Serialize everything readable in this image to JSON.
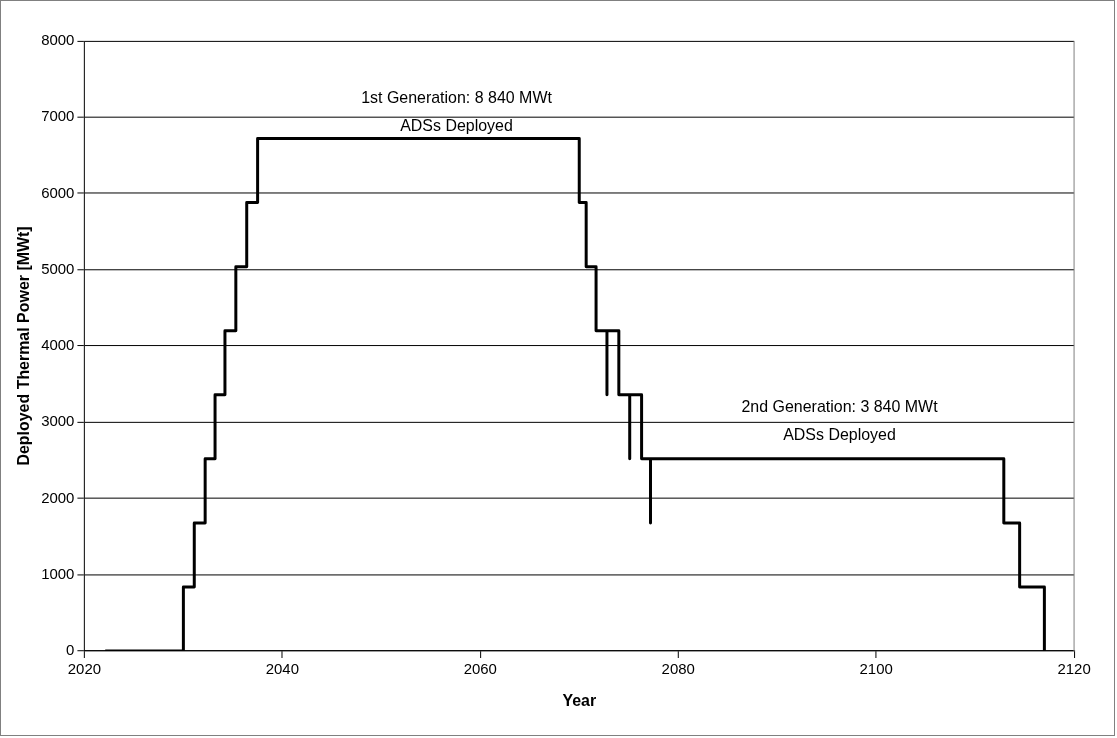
{
  "chart_data": {
    "type": "line",
    "xlabel": "Year",
    "ylabel": "Deployed Thermal Power [MWt]",
    "xlim": [
      2020,
      2120
    ],
    "xticks": [
      2020,
      2040,
      2060,
      2080,
      2100,
      2120
    ],
    "ylim": [
      0,
      8000
    ],
    "yticks": [
      0,
      1000,
      2000,
      3000,
      4000,
      5000,
      6000,
      7000,
      8000
    ],
    "grid": "y",
    "legend": false,
    "marker": "none",
    "line_style": "solid",
    "annotations": [
      "1st Generation: 8 840 MWt\nADSs Deployed",
      "2nd Generation: 3 840 MWt\nADSs Deployed"
    ],
    "series": [
      {
        "color": "#000000",
        "x": [
          2022.1,
          2030,
          2030,
          2031.1,
          2031.1,
          2032.2,
          2032.2,
          2033.2,
          2033.2,
          2034.2,
          2034.2,
          2035.3,
          2035.3,
          2036.4,
          2036.4,
          2037.5,
          2037.5,
          2070,
          2070,
          2070.7,
          2070.7,
          2071.7,
          2071.7,
          2072.8,
          2072.8,
          2072.8,
          2074,
          2074,
          2075.1,
          2075.1,
          2075.1,
          2076.3,
          2076.3,
          2077.2,
          2077.2,
          2077.2,
          2112.9,
          2112.9,
          2114.5,
          2114.5,
          2117,
          2117
        ],
        "values": [
          0,
          0,
          840,
          840,
          1680,
          1680,
          2520,
          2520,
          3360,
          3360,
          4200,
          4200,
          5040,
          5040,
          5880,
          5880,
          6720,
          6720,
          5880,
          5880,
          5040,
          5040,
          4200,
          4200,
          3360,
          4200,
          4200,
          3360,
          3360,
          2520,
          3360,
          3360,
          2520,
          2520,
          1680,
          2520,
          2520,
          1680,
          1680,
          840,
          840,
          0
        ]
      }
    ]
  }
}
